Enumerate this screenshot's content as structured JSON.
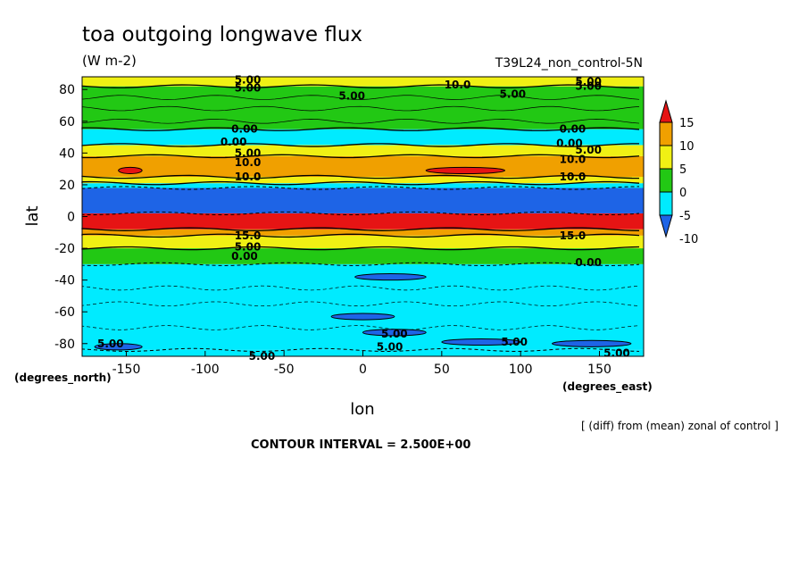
{
  "chart_data": {
    "type": "contour",
    "title": "toa outgoing longwave flux",
    "units": "(W m-2)",
    "run_label": "T39L24_non_control-5N",
    "xlabel": "lon",
    "ylabel": "lat",
    "x_unit_label": "(degrees_east)",
    "y_unit_label": "(degrees_north)",
    "xlim": [
      -178,
      178
    ],
    "ylim": [
      -88,
      88
    ],
    "x_ticks": [
      -150,
      -100,
      -50,
      0,
      50,
      100,
      150
    ],
    "x_tick_labels": [
      "-150",
      "-100",
      "-50",
      "0",
      "50",
      "100",
      "150"
    ],
    "y_ticks": [
      -80,
      -60,
      -40,
      -20,
      0,
      20,
      40,
      60,
      80
    ],
    "y_tick_labels": [
      "-80",
      "-60",
      "-40",
      "-20",
      "0",
      "20",
      "40",
      "60",
      "80"
    ],
    "note": "[ (diff) from (mean) zonal of control ]",
    "contour_interval_text": "CONTOUR INTERVAL = 2.500E+00",
    "colorbar": {
      "levels": [
        -10,
        -5,
        0,
        5,
        10,
        15
      ],
      "labels": [
        "15",
        "10",
        "5",
        "0",
        "-5",
        "-10"
      ],
      "colors": [
        "#1e64e6",
        "#00ebff",
        "#22c814",
        "#f0f014",
        "#f0a000",
        "#e61414"
      ]
    },
    "bands": [
      {
        "lat_min": -88,
        "lat_max": -84,
        "value_color": "#00ebff"
      },
      {
        "lat_min": -84,
        "lat_max": -30,
        "value_color": "#00ebff"
      },
      {
        "lat_min": -30,
        "lat_max": -20,
        "value_color": "#22c814"
      },
      {
        "lat_min": -20,
        "lat_max": -12,
        "value_color": "#f0f014"
      },
      {
        "lat_min": -12,
        "lat_max": -8,
        "value_color": "#f0a000"
      },
      {
        "lat_min": -8,
        "lat_max": 2,
        "value_color": "#e61414"
      },
      {
        "lat_min": 2,
        "lat_max": 18,
        "value_color": "#1e64e6"
      },
      {
        "lat_min": 18,
        "lat_max": 21,
        "value_color": "#00ebff"
      },
      {
        "lat_min": 21,
        "lat_max": 25,
        "value_color": "#f0f014"
      },
      {
        "lat_min": 25,
        "lat_max": 38,
        "value_color": "#f0a000"
      },
      {
        "lat_min": 38,
        "lat_max": 45,
        "value_color": "#f0f014"
      },
      {
        "lat_min": 45,
        "lat_max": 55,
        "value_color": "#00ebff"
      },
      {
        "lat_min": 55,
        "lat_max": 82,
        "value_color": "#22c814"
      },
      {
        "lat_min": 82,
        "lat_max": 88,
        "value_color": "#f0f014"
      }
    ],
    "patches": [
      {
        "lon_min": -155,
        "lon_max": -140,
        "lat_min": 27,
        "lat_max": 31,
        "value_color": "#e61414"
      },
      {
        "lon_min": 40,
        "lon_max": 90,
        "lat_min": 27,
        "lat_max": 31,
        "value_color": "#e61414"
      },
      {
        "lon_min": -5,
        "lon_max": 40,
        "lat_min": -40,
        "lat_max": -36,
        "value_color": "#1e64e6"
      },
      {
        "lon_min": -20,
        "lon_max": 20,
        "lat_min": -65,
        "lat_max": -61,
        "value_color": "#1e64e6"
      },
      {
        "lon_min": 0,
        "lon_max": 40,
        "lat_min": -75,
        "lat_max": -71,
        "value_color": "#1e64e6"
      },
      {
        "lon_min": 50,
        "lon_max": 100,
        "lat_min": -81,
        "lat_max": -77,
        "value_color": "#1e64e6"
      },
      {
        "lon_min": -170,
        "lon_max": -140,
        "lat_min": -84,
        "lat_max": -80,
        "value_color": "#1e64e6"
      },
      {
        "lon_min": 120,
        "lon_max": 170,
        "lat_min": -82,
        "lat_max": -78,
        "value_color": "#1e64e6"
      }
    ],
    "contour_labels": [
      {
        "text": "5.00",
        "lon": -73,
        "lat": 86
      },
      {
        "text": "5.00",
        "lon": -73,
        "lat": 81
      },
      {
        "text": "5.00",
        "lon": -7,
        "lat": 76
      },
      {
        "text": "10.0",
        "lon": 60,
        "lat": 83
      },
      {
        "text": "5.00",
        "lon": 95,
        "lat": 77
      },
      {
        "text": "5.00",
        "lon": 143,
        "lat": 85
      },
      {
        "text": "5.00",
        "lon": 143,
        "lat": 82
      },
      {
        "text": "0.00",
        "lon": -75,
        "lat": 55
      },
      {
        "text": "0.00",
        "lon": -82,
        "lat": 47
      },
      {
        "text": "0.00",
        "lon": 133,
        "lat": 55
      },
      {
        "text": "0.00",
        "lon": 131,
        "lat": 46
      },
      {
        "text": "5.00",
        "lon": -73,
        "lat": 40
      },
      {
        "text": "10.0",
        "lon": -73,
        "lat": 34
      },
      {
        "text": "5.00",
        "lon": 143,
        "lat": 42
      },
      {
        "text": "10.0",
        "lon": 133,
        "lat": 36
      },
      {
        "text": "10.0",
        "lon": -73,
        "lat": 25
      },
      {
        "text": "10.0",
        "lon": 133,
        "lat": 25
      },
      {
        "text": "15.0",
        "lon": -73,
        "lat": -12
      },
      {
        "text": "5.00",
        "lon": -73,
        "lat": -19
      },
      {
        "text": "0.00",
        "lon": -75,
        "lat": -25
      },
      {
        "text": "15.0",
        "lon": 133,
        "lat": -12
      },
      {
        "text": "0.00",
        "lon": 143,
        "lat": -29
      },
      {
        "text": "5.00",
        "lon": -160,
        "lat": -80
      },
      {
        "text": "5.00",
        "lon": 20,
        "lat": -74
      },
      {
        "text": "5.00",
        "lon": 17,
        "lat": -82
      },
      {
        "text": "5.00",
        "lon": 96,
        "lat": -79
      },
      {
        "text": "5.00",
        "lon": 161,
        "lat": -86
      },
      {
        "text": "5.00",
        "lon": -64,
        "lat": -88
      }
    ]
  }
}
